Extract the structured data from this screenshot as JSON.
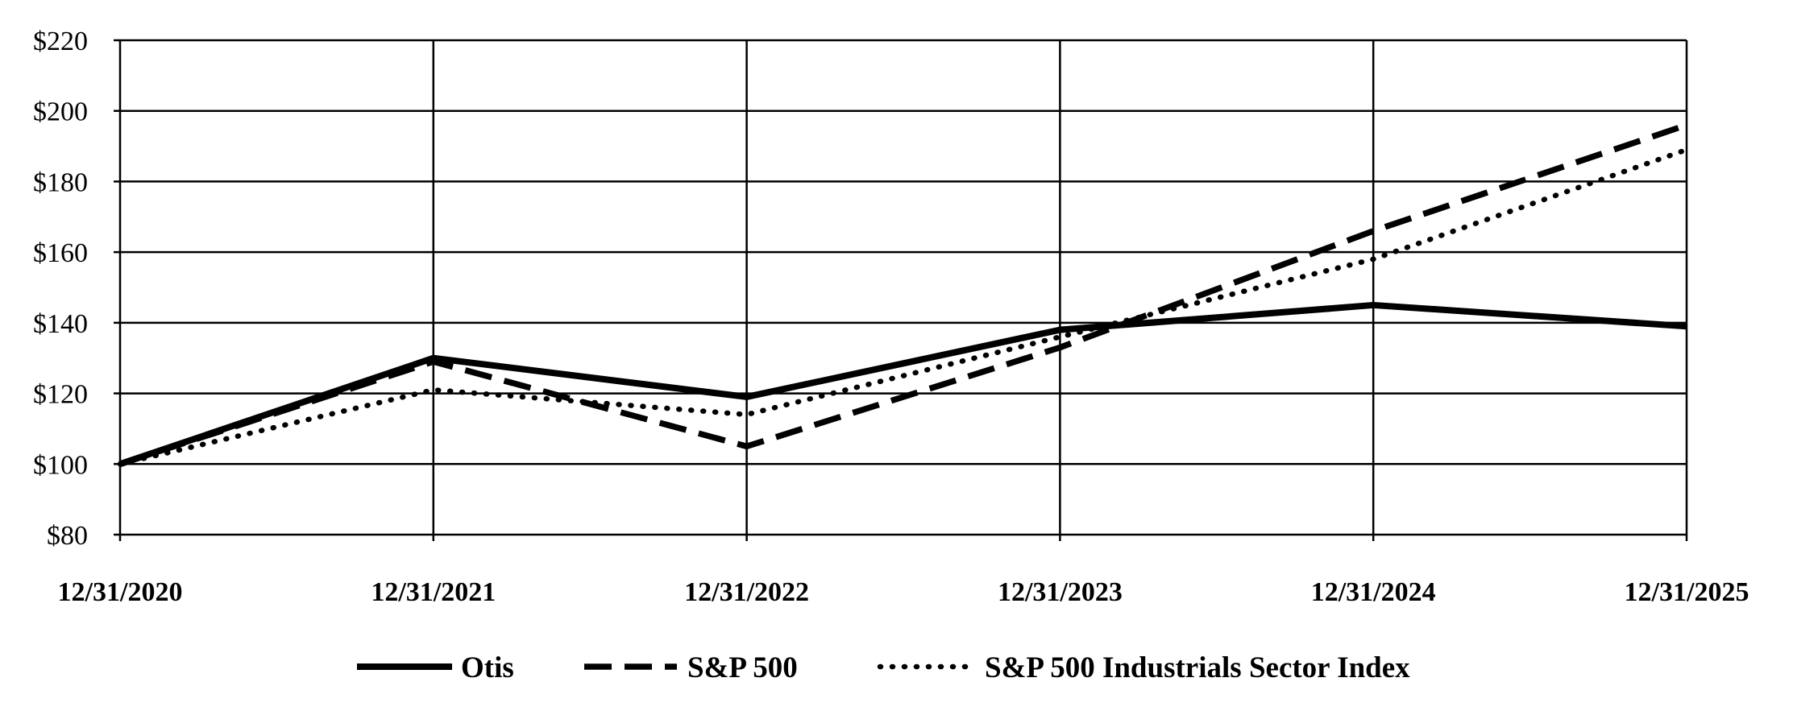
{
  "chart_data": {
    "type": "line",
    "title": "",
    "xlabel": "",
    "ylabel": "",
    "categories": [
      "12/31/2020",
      "12/31/2021",
      "12/31/2022",
      "12/31/2023",
      "12/31/2024",
      "12/31/2025"
    ],
    "ylim": [
      80,
      220
    ],
    "y_ticks": [
      80,
      100,
      120,
      140,
      160,
      180,
      200,
      220
    ],
    "y_tick_labels": [
      "$80",
      "$100",
      "$120",
      "$140",
      "$160",
      "$180",
      "$200",
      "$220"
    ],
    "grid": true,
    "legend_position": "bottom",
    "series": [
      {
        "name": "Otis",
        "style": "solid",
        "values": [
          100,
          130,
          119,
          138,
          145,
          139
        ]
      },
      {
        "name": "S&P 500",
        "style": "dashed",
        "values": [
          100,
          129,
          105,
          133,
          166,
          196
        ]
      },
      {
        "name": "S&P 500 Industrials Sector Index",
        "style": "dotted",
        "values": [
          100,
          121,
          114,
          136,
          158,
          189
        ]
      }
    ],
    "colors": {
      "line": "#000000",
      "grid": "#000000",
      "background": "#ffffff"
    }
  }
}
